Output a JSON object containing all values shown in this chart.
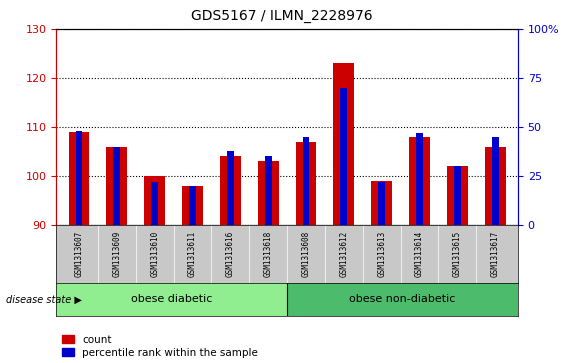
{
  "title": "GDS5167 / ILMN_2228976",
  "samples": [
    "GSM1313607",
    "GSM1313609",
    "GSM1313610",
    "GSM1313611",
    "GSM1313616",
    "GSM1313618",
    "GSM1313608",
    "GSM1313612",
    "GSM1313613",
    "GSM1313614",
    "GSM1313615",
    "GSM1313617"
  ],
  "red_values": [
    109,
    106,
    100,
    98,
    104,
    103,
    107,
    123,
    99,
    108,
    102,
    106
  ],
  "blue_percentiles": [
    48,
    40,
    22,
    20,
    38,
    35,
    45,
    70,
    22,
    47,
    30,
    45
  ],
  "ylim_left": [
    90,
    130
  ],
  "ylim_right": [
    0,
    100
  ],
  "yticks_left": [
    90,
    100,
    110,
    120,
    130
  ],
  "yticks_right": [
    0,
    25,
    50,
    75,
    100
  ],
  "ytick_labels_right": [
    "0",
    "25",
    "50",
    "75",
    "100%"
  ],
  "groups": [
    {
      "label": "obese diabetic",
      "start": 0,
      "end": 6,
      "color": "#90ee90"
    },
    {
      "label": "obese non-diabetic",
      "start": 6,
      "end": 12,
      "color": "#4cbb6c"
    }
  ],
  "disease_state_label": "disease state",
  "legend": [
    {
      "label": "count",
      "color": "#cc0000"
    },
    {
      "label": "percentile rank within the sample",
      "color": "#0000cc"
    }
  ],
  "bar_width": 0.55,
  "blue_bar_width": 0.18,
  "left_axis_color": "#cc0000",
  "right_axis_color": "#0000cc",
  "tick_area_bg": "#c8c8c8",
  "baseline": 90
}
